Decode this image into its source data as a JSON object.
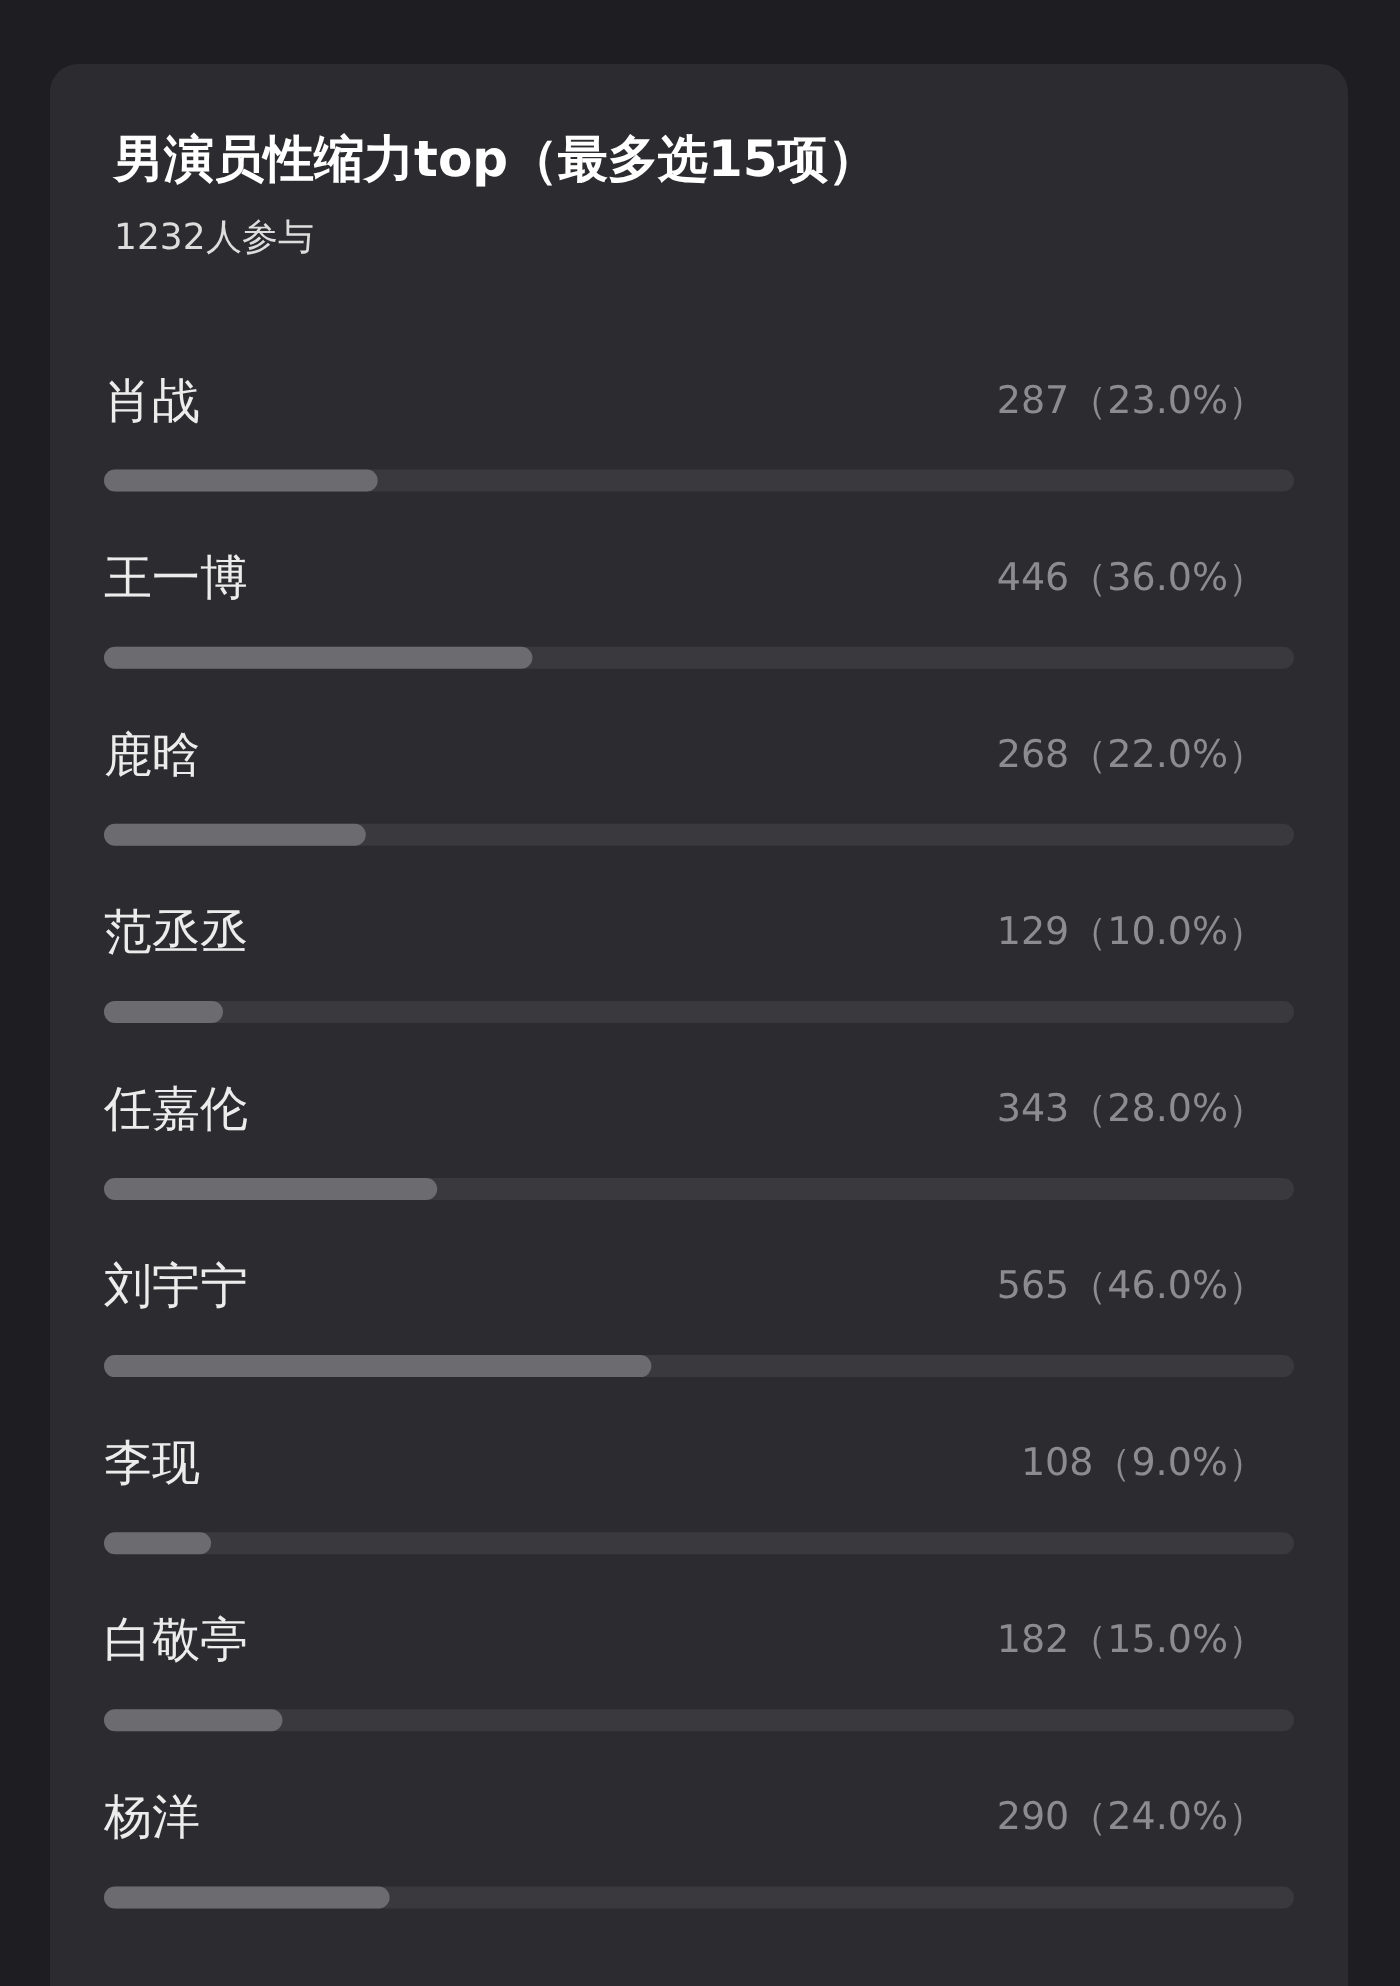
{
  "chart_data": {
    "type": "bar",
    "orientation": "horizontal",
    "title": "男演员性缩力top（最多选15项）",
    "subtitle": "1232人参与",
    "categories": [
      "肖战",
      "王一博",
      "鹿晗",
      "范丞丞",
      "任嘉伦",
      "刘宇宁",
      "李现",
      "白敬亭",
      "杨洋"
    ],
    "values": [
      23.0,
      36.0,
      22.0,
      10.0,
      28.0,
      46.0,
      9.0,
      15.0,
      24.0
    ],
    "value_labels": [
      "287（23.0%）",
      "446（36.0%）",
      "268（22.0%）",
      "129（10.0%）",
      "343（28.0%）",
      "565（46.0%）",
      "108（9.0%）",
      "182（15.0%）",
      "290（24.0%）"
    ],
    "color": "#6b6b70",
    "xlim": [
      0,
      100
    ],
    "tick_labels": false
  }
}
